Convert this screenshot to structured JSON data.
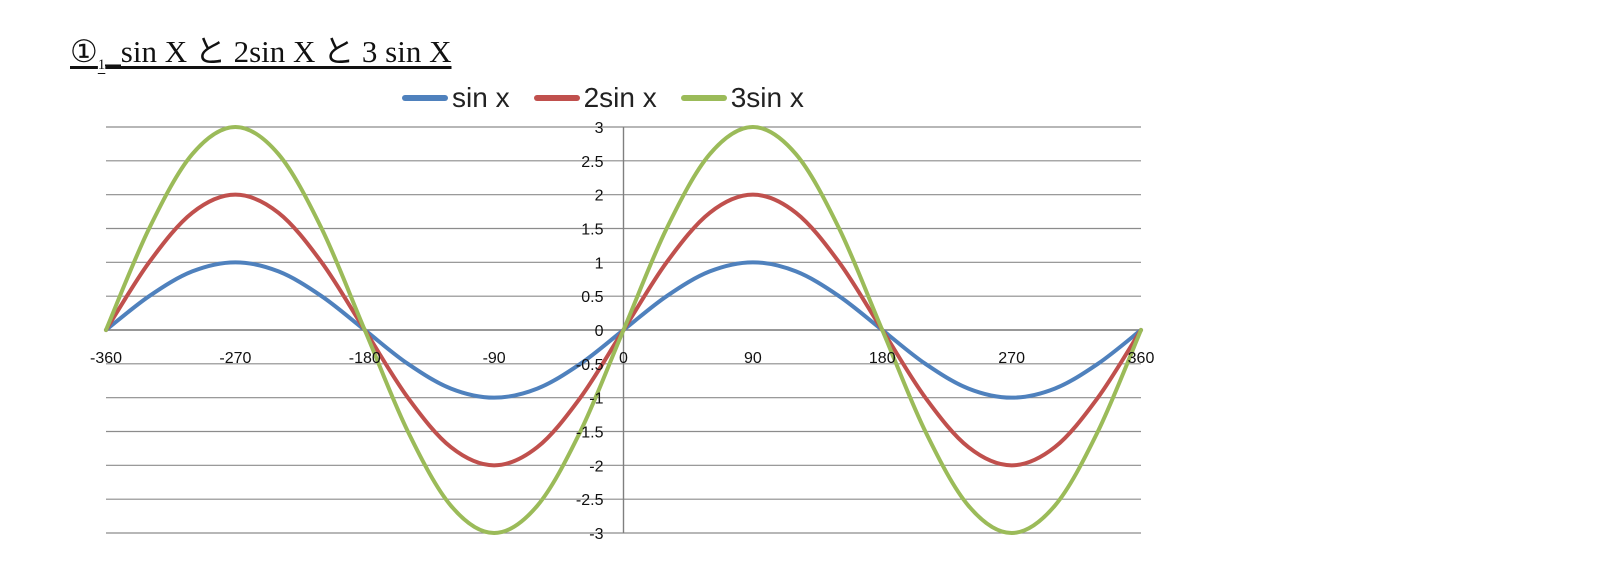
{
  "header": {
    "title_main": "①",
    "title_sub": "1",
    "title_rest": "_sin X と 2sin X と 3 sin X"
  },
  "chart_data": {
    "type": "line",
    "title": "",
    "xlabel": "",
    "ylabel": "",
    "xlim": [
      -360,
      360
    ],
    "ylim": [
      -3,
      3
    ],
    "grid": true,
    "legend_position": "top",
    "x_ticks": [
      -360,
      -270,
      -180,
      -90,
      0,
      90,
      180,
      270,
      360
    ],
    "y_ticks": [
      3,
      2.5,
      2,
      1.5,
      1,
      0.5,
      0,
      -0.5,
      -1,
      -1.5,
      -2,
      -2.5,
      -3
    ],
    "x": [
      -360,
      -330,
      -300,
      -270,
      -240,
      -210,
      -180,
      -150,
      -120,
      -90,
      -60,
      -30,
      0,
      30,
      60,
      90,
      120,
      150,
      180,
      210,
      240,
      270,
      300,
      330,
      360
    ],
    "series": [
      {
        "name": "sin x",
        "color": "#4f81bd",
        "values": [
          0,
          0.5,
          0.866,
          1,
          0.866,
          0.5,
          0,
          -0.5,
          -0.866,
          -1,
          -0.866,
          -0.5,
          0,
          0.5,
          0.866,
          1,
          0.866,
          0.5,
          0,
          -0.5,
          -0.866,
          -1,
          -0.866,
          -0.5,
          0
        ]
      },
      {
        "name": "2sin x",
        "color": "#c0504d",
        "values": [
          0,
          1,
          1.732,
          2,
          1.732,
          1,
          0,
          -1,
          -1.732,
          -2,
          -1.732,
          -1,
          0,
          1,
          1.732,
          2,
          1.732,
          1,
          0,
          -1,
          -1.732,
          -2,
          -1.732,
          -1,
          0
        ]
      },
      {
        "name": "3sin x",
        "color": "#9bbb59",
        "values": [
          0,
          1.5,
          2.598,
          3,
          2.598,
          1.5,
          0,
          -1.5,
          -2.598,
          -3,
          -2.598,
          -1.5,
          0,
          1.5,
          2.598,
          3,
          2.598,
          1.5,
          0,
          -1.5,
          -2.598,
          -3,
          -2.598,
          -1.5,
          0
        ]
      }
    ]
  }
}
